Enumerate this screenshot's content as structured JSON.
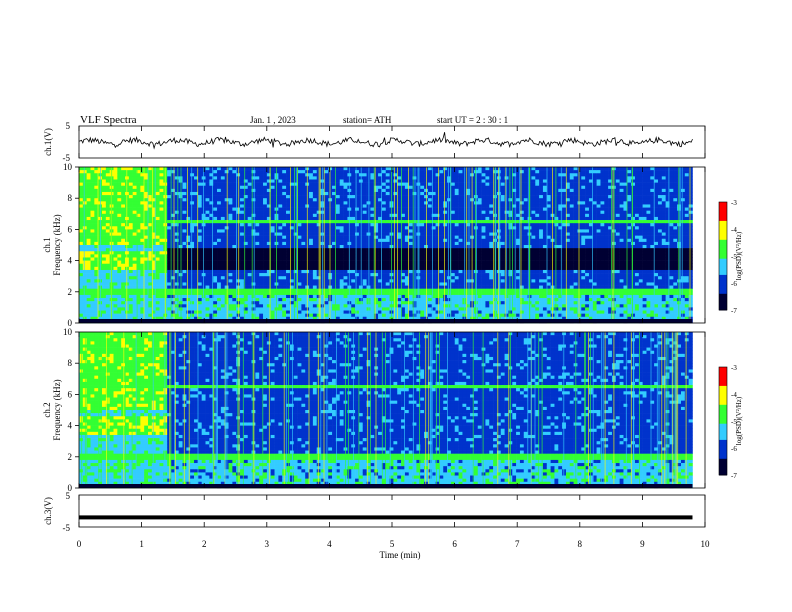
{
  "header": {
    "title": "VLF  Spectra",
    "date": "Jan.  1  , 2023",
    "station": "station= ATH",
    "start": "start  UT  =   2  : 30 : 1"
  },
  "chart_data": [
    {
      "id": "ch1_voltage",
      "type": "line",
      "ylabel": "ch.1(V)",
      "ylim": [
        -5,
        5
      ],
      "yticks": [
        "5",
        "-5"
      ],
      "xlim": [
        0,
        10
      ],
      "trace": "noisy waveform around 0 V with small excursions",
      "color": "#000000"
    },
    {
      "id": "ch1_spectrogram",
      "type": "heatmap",
      "ylabel": "ch.1\nFrequency  (kHz)",
      "ylim": [
        0,
        10
      ],
      "yticks": [
        "0",
        "2",
        "4",
        "6",
        "8",
        "10"
      ],
      "xlim": [
        0,
        9.8
      ],
      "colorbar": {
        "label": "log(PSD)(V²/Hz)",
        "range": [
          -7,
          -3
        ],
        "ticks": [
          "-3",
          "-4",
          "-5",
          "-6",
          "-7"
        ]
      }
    },
    {
      "id": "ch2_spectrogram",
      "type": "heatmap",
      "ylabel": "ch.2\nFrequency  (kHz)",
      "ylim": [
        0,
        10
      ],
      "yticks": [
        "0",
        "2",
        "4",
        "6",
        "8",
        "10"
      ],
      "xlim": [
        0,
        9.8
      ],
      "colorbar": {
        "label": "log(PSD)(V²/Hz)",
        "range": [
          -7,
          -3
        ],
        "ticks": [
          "-3",
          "-4",
          "-5",
          "-6",
          "-7"
        ]
      }
    },
    {
      "id": "ch3_voltage",
      "type": "line",
      "ylabel": "ch.3(V)",
      "ylim": [
        -5,
        5
      ],
      "yticks": [
        "5",
        "-5"
      ],
      "xlim": [
        0,
        10
      ],
      "level": -2,
      "color": "#000000"
    }
  ],
  "xaxis": {
    "label": "Time  (min)",
    "ticks": [
      "0",
      "1",
      "2",
      "3",
      "4",
      "5",
      "6",
      "7",
      "8",
      "9",
      "10"
    ],
    "range": [
      0,
      10
    ]
  },
  "colors": {
    "deep": "#000033",
    "blue": "#0033cc",
    "cyan": "#33ccff",
    "green": "#33ff33",
    "yellow": "#ffff00",
    "red": "#ff0000"
  }
}
